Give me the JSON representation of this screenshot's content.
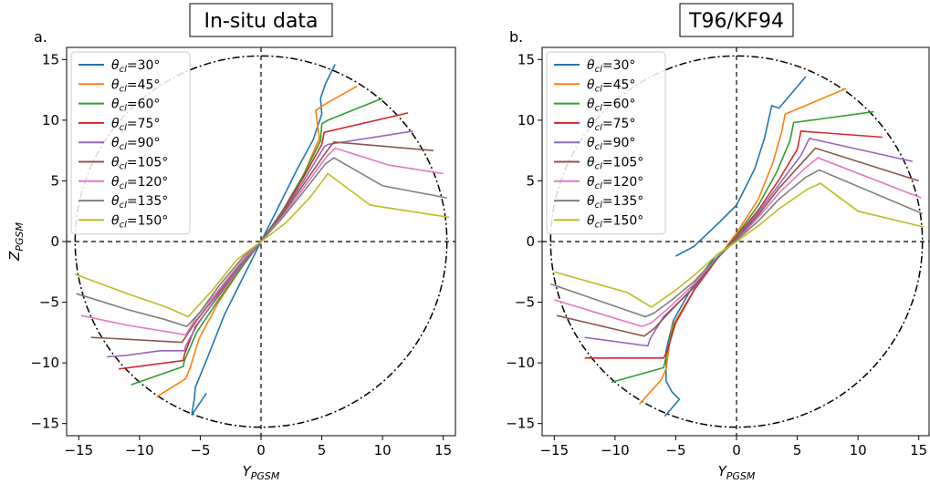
{
  "figure": {
    "background": "#ffffff"
  },
  "chart_data": [
    {
      "type": "line",
      "panel_letter": "a.",
      "title": "In-situ data",
      "xlabel_main": "Y",
      "xlabel_sub": "PGSM",
      "ylabel_main": "Z",
      "ylabel_sub": "PGSM",
      "xlim": [
        -16,
        16
      ],
      "ylim": [
        -16,
        16
      ],
      "xticks": [
        -15,
        -10,
        -5,
        0,
        5,
        10,
        15
      ],
      "yticks": [
        -15,
        -10,
        -5,
        0,
        5,
        10,
        15
      ],
      "xtick_labels": [
        "−15",
        "−10",
        "−5",
        "0",
        "5",
        "10",
        "15"
      ],
      "ytick_labels": [
        "−15",
        "−10",
        "−5",
        "0",
        "5",
        "10",
        "15"
      ],
      "boundary_circle_radius": 15.3,
      "reference_lines": [
        "x=0",
        "y=0"
      ],
      "grid": false,
      "legend_position": "upper-left",
      "series": [
        {
          "name": "θcl=30°",
          "label_main": "θ",
          "label_sub": "cl",
          "label_rest": "=30°",
          "color": "#1f77b4",
          "x": [
            -4.5,
            -5.7,
            -5.5,
            -5.4,
            -4.5,
            -3.0,
            -1.5,
            0.0,
            1.5,
            3.0,
            4.3,
            5.0,
            4.9,
            5.3,
            6.1
          ],
          "y": [
            -12.5,
            -14.3,
            -13.0,
            -12.0,
            -9.8,
            -6.0,
            -3.0,
            0.0,
            3.0,
            6.0,
            8.4,
            10.5,
            11.8,
            13.0,
            14.6
          ]
        },
        {
          "name": "θcl=45°",
          "label_main": "θ",
          "label_sub": "cl",
          "label_rest": "=45°",
          "color": "#ff7f0e",
          "x": [
            -8.6,
            -6.2,
            -5.8,
            -5.1,
            -3.5,
            -1.5,
            0.0,
            1.8,
            3.5,
            4.8,
            4.5,
            5.4,
            7.9
          ],
          "y": [
            -12.8,
            -11.3,
            -10.3,
            -8.0,
            -5.0,
            -2.0,
            0.0,
            2.5,
            5.5,
            8.5,
            10.8,
            11.4,
            12.8
          ]
        },
        {
          "name": "θcl=60°",
          "label_main": "θ",
          "label_sub": "cl",
          "label_rest": "=60°",
          "color": "#2ca02c",
          "x": [
            -10.7,
            -6.4,
            -6.3,
            -5.3,
            -3.5,
            -1.5,
            0.0,
            1.8,
            3.5,
            4.9,
            5.0,
            5.5,
            10.0
          ],
          "y": [
            -11.8,
            -10.3,
            -9.8,
            -7.5,
            -4.8,
            -2.0,
            0.0,
            2.6,
            5.5,
            8.3,
            9.7,
            10.0,
            11.8
          ]
        },
        {
          "name": "θcl=75°",
          "label_main": "θ",
          "label_sub": "cl",
          "label_rest": "=75°",
          "color": "#d62728",
          "x": [
            -11.7,
            -6.4,
            -6.3,
            -5.4,
            -3.5,
            -1.5,
            0.0,
            1.8,
            3.5,
            5.0,
            5.2,
            12.1
          ],
          "y": [
            -10.5,
            -9.8,
            -9.3,
            -7.0,
            -4.5,
            -1.8,
            0.0,
            2.5,
            5.3,
            8.0,
            9.0,
            10.6
          ]
        },
        {
          "name": "θcl=90°",
          "label_main": "θ",
          "label_sub": "cl",
          "label_rest": "=90°",
          "color": "#9467bd",
          "x": [
            -12.7,
            -11.2,
            -8.3,
            -6.3,
            -6.2,
            -5.2,
            -3.5,
            -1.5,
            0.0,
            1.8,
            3.5,
            5.2,
            5.5,
            12.5
          ],
          "y": [
            -9.5,
            -9.4,
            -9.0,
            -9.0,
            -8.6,
            -6.8,
            -4.4,
            -1.8,
            0.0,
            2.4,
            5.0,
            7.8,
            8.0,
            9.1
          ]
        },
        {
          "name": "θcl=105°",
          "label_main": "θ",
          "label_sub": "cl",
          "label_rest": "=105°",
          "color": "#8c564b",
          "x": [
            -14.0,
            -12.0,
            -6.5,
            -5.3,
            -3.5,
            -1.5,
            0.0,
            1.8,
            3.5,
            5.3,
            6.0,
            14.2
          ],
          "y": [
            -7.9,
            -8.0,
            -8.3,
            -6.5,
            -4.2,
            -1.6,
            0.0,
            2.3,
            4.7,
            7.3,
            8.2,
            7.5
          ]
        },
        {
          "name": "θcl=120°",
          "label_main": "θ",
          "label_sub": "cl",
          "label_rest": "=120°",
          "color": "#e377c2",
          "x": [
            -14.8,
            -11.0,
            -7.3,
            -6.2,
            -5.3,
            -3.5,
            -1.5,
            0.0,
            1.8,
            3.5,
            5.4,
            6.1,
            10.5,
            15.0
          ],
          "y": [
            -6.1,
            -6.9,
            -7.5,
            -7.7,
            -6.2,
            -4.0,
            -1.5,
            0.0,
            2.1,
            4.4,
            7.0,
            7.7,
            6.3,
            5.6
          ]
        },
        {
          "name": "θcl=135°",
          "label_main": "θ",
          "label_sub": "cl",
          "label_rest": "=135°",
          "color": "#7f7f7f",
          "x": [
            -15.2,
            -11.0,
            -8.0,
            -6.1,
            -5.0,
            -3.5,
            -1.5,
            0.0,
            1.8,
            3.5,
            5.3,
            6.0,
            10.0,
            15.3
          ],
          "y": [
            -4.3,
            -5.6,
            -6.4,
            -7.0,
            -5.8,
            -3.7,
            -1.3,
            0.0,
            2.0,
            4.1,
            6.4,
            6.9,
            4.6,
            3.6
          ]
        },
        {
          "name": "θcl=150°",
          "label_main": "θ",
          "label_sub": "cl",
          "label_rest": "=150°",
          "color": "#bcbd22",
          "x": [
            -15.3,
            -11.0,
            -7.8,
            -6.0,
            -4.0,
            -2.0,
            0.0,
            2.0,
            4.0,
            5.5,
            9.0,
            15.5
          ],
          "y": [
            -2.7,
            -4.3,
            -5.4,
            -6.2,
            -4.0,
            -1.5,
            0.0,
            1.5,
            3.6,
            5.6,
            3.0,
            2.0
          ]
        }
      ]
    },
    {
      "type": "line",
      "panel_letter": "b.",
      "title": "T96/KF94",
      "xlabel_main": "Y",
      "xlabel_sub": "PGSM",
      "ylabel_main": "",
      "ylabel_sub": "",
      "xlim": [
        -16,
        16
      ],
      "ylim": [
        -16,
        16
      ],
      "xticks": [
        -15,
        -10,
        -5,
        0,
        5,
        10,
        15
      ],
      "yticks": [
        -15,
        -10,
        -5,
        0,
        5,
        10,
        15
      ],
      "xtick_labels": [
        "−15",
        "−10",
        "−5",
        "0",
        "5",
        "10",
        "15"
      ],
      "ytick_labels": [
        "−15",
        "−10",
        "−5",
        "0",
        "5",
        "10",
        "15"
      ],
      "boundary_circle_radius": 15.3,
      "reference_lines": [
        "x=0",
        "y=0"
      ],
      "grid": false,
      "legend_position": "upper-left",
      "series": [
        {
          "name": "θcl=30°",
          "label_main": "θ",
          "label_sub": "cl",
          "label_rest": "=30°",
          "color": "#1f77b4",
          "x": [
            -5.0,
            -3.5,
            -1.5,
            0.0,
            1.5,
            2.3,
            2.9,
            3.5,
            5.7
          ],
          "y": [
            -1.2,
            -0.4,
            1.5,
            3.0,
            6.0,
            8.5,
            11.2,
            11.0,
            13.6
          ],
          "x_lower": [
            -1.8,
            -3.5,
            -5.2,
            -5.8,
            -5.8,
            -5.3,
            -4.7,
            -5.9
          ],
          "y_lower": [
            -1.3,
            -3.5,
            -6.5,
            -9.0,
            -11.5,
            -12.4,
            -13.0,
            -14.4
          ]
        },
        {
          "name": "θcl=45°",
          "label_main": "θ",
          "label_sub": "cl",
          "label_rest": "=45°",
          "color": "#ff7f0e",
          "x": [
            -8.0,
            -6.2,
            -5.8,
            -5.3,
            -3.5,
            -1.5,
            0.0,
            1.8,
            3.0,
            3.7,
            4.0,
            9.0
          ],
          "y": [
            -13.4,
            -11.4,
            -10.5,
            -7.0,
            -4.0,
            -1.3,
            0.7,
            3.5,
            6.5,
            9.0,
            10.5,
            12.6
          ]
        },
        {
          "name": "θcl=60°",
          "label_main": "θ",
          "label_sub": "cl",
          "label_rest": "=60°",
          "color": "#2ca02c",
          "x": [
            -10.3,
            -6.0,
            -5.8,
            -5.2,
            -3.5,
            -1.5,
            0.0,
            1.8,
            3.3,
            4.4,
            4.7,
            11.3
          ],
          "y": [
            -11.6,
            -10.4,
            -9.5,
            -7.0,
            -4.0,
            -1.3,
            0.5,
            3.0,
            5.7,
            8.3,
            9.8,
            10.7
          ]
        },
        {
          "name": "θcl=75°",
          "label_main": "θ",
          "label_sub": "cl",
          "label_rest": "=75°",
          "color": "#d62728",
          "x": [
            -12.5,
            -6.0,
            -5.7,
            -5.0,
            -3.5,
            -1.5,
            0.0,
            1.8,
            3.5,
            5.0,
            5.3,
            12.0
          ],
          "y": [
            -9.6,
            -9.6,
            -9.0,
            -6.7,
            -4.0,
            -1.3,
            0.4,
            2.6,
            5.1,
            7.6,
            9.1,
            8.6
          ]
        },
        {
          "name": "θcl=90°",
          "label_main": "θ",
          "label_sub": "cl",
          "label_rest": "=90°",
          "color": "#9467bd",
          "x": [
            -12.5,
            -7.3,
            -7.1,
            -6.0,
            -3.5,
            -1.5,
            0.0,
            1.8,
            3.5,
            5.3,
            6.0,
            14.5
          ],
          "y": [
            -7.9,
            -8.6,
            -8.0,
            -6.2,
            -3.8,
            -1.3,
            0.3,
            2.4,
            4.7,
            7.1,
            8.5,
            6.6
          ]
        },
        {
          "name": "θcl=105°",
          "label_main": "θ",
          "label_sub": "cl",
          "label_rest": "=105°",
          "color": "#8c564b",
          "x": [
            -14.8,
            -7.6,
            -6.8,
            -5.5,
            -3.5,
            -1.5,
            0.0,
            1.8,
            3.5,
            5.5,
            6.5,
            15.0
          ],
          "y": [
            -6.1,
            -7.8,
            -7.2,
            -5.8,
            -3.7,
            -1.3,
            0.2,
            2.2,
            4.4,
            6.6,
            7.7,
            5.0
          ]
        },
        {
          "name": "θcl=120°",
          "label_main": "θ",
          "label_sub": "cl",
          "label_rest": "=120°",
          "color": "#e377c2",
          "x": [
            -15.0,
            -7.8,
            -7.0,
            -5.5,
            -3.5,
            -1.5,
            0.0,
            1.8,
            3.5,
            5.6,
            6.7,
            15.2
          ],
          "y": [
            -4.8,
            -7.0,
            -6.7,
            -5.4,
            -3.5,
            -1.2,
            0.1,
            2.0,
            4.0,
            6.0,
            6.9,
            3.6
          ]
        },
        {
          "name": "θcl=135°",
          "label_main": "θ",
          "label_sub": "cl",
          "label_rest": "=135°",
          "color": "#7f7f7f",
          "x": [
            -15.3,
            -7.5,
            -6.8,
            -5.3,
            -3.5,
            -1.5,
            0.0,
            1.8,
            3.5,
            5.7,
            6.8,
            15.3
          ],
          "y": [
            -3.5,
            -6.2,
            -5.9,
            -4.8,
            -3.3,
            -1.2,
            0.1,
            1.7,
            3.5,
            5.3,
            5.9,
            2.3
          ]
        },
        {
          "name": "θcl=150°",
          "label_main": "θ",
          "label_sub": "cl",
          "label_rest": "=150°",
          "color": "#bcbd22",
          "x": [
            -15.0,
            -9.0,
            -7.0,
            -5.0,
            -3.5,
            -1.5,
            0.0,
            1.8,
            3.5,
            5.8,
            6.9,
            10.0,
            15.4
          ],
          "y": [
            -2.5,
            -4.2,
            -5.4,
            -4.0,
            -2.8,
            -1.0,
            0.0,
            1.3,
            2.7,
            4.3,
            4.8,
            2.5,
            1.2
          ]
        }
      ]
    }
  ]
}
